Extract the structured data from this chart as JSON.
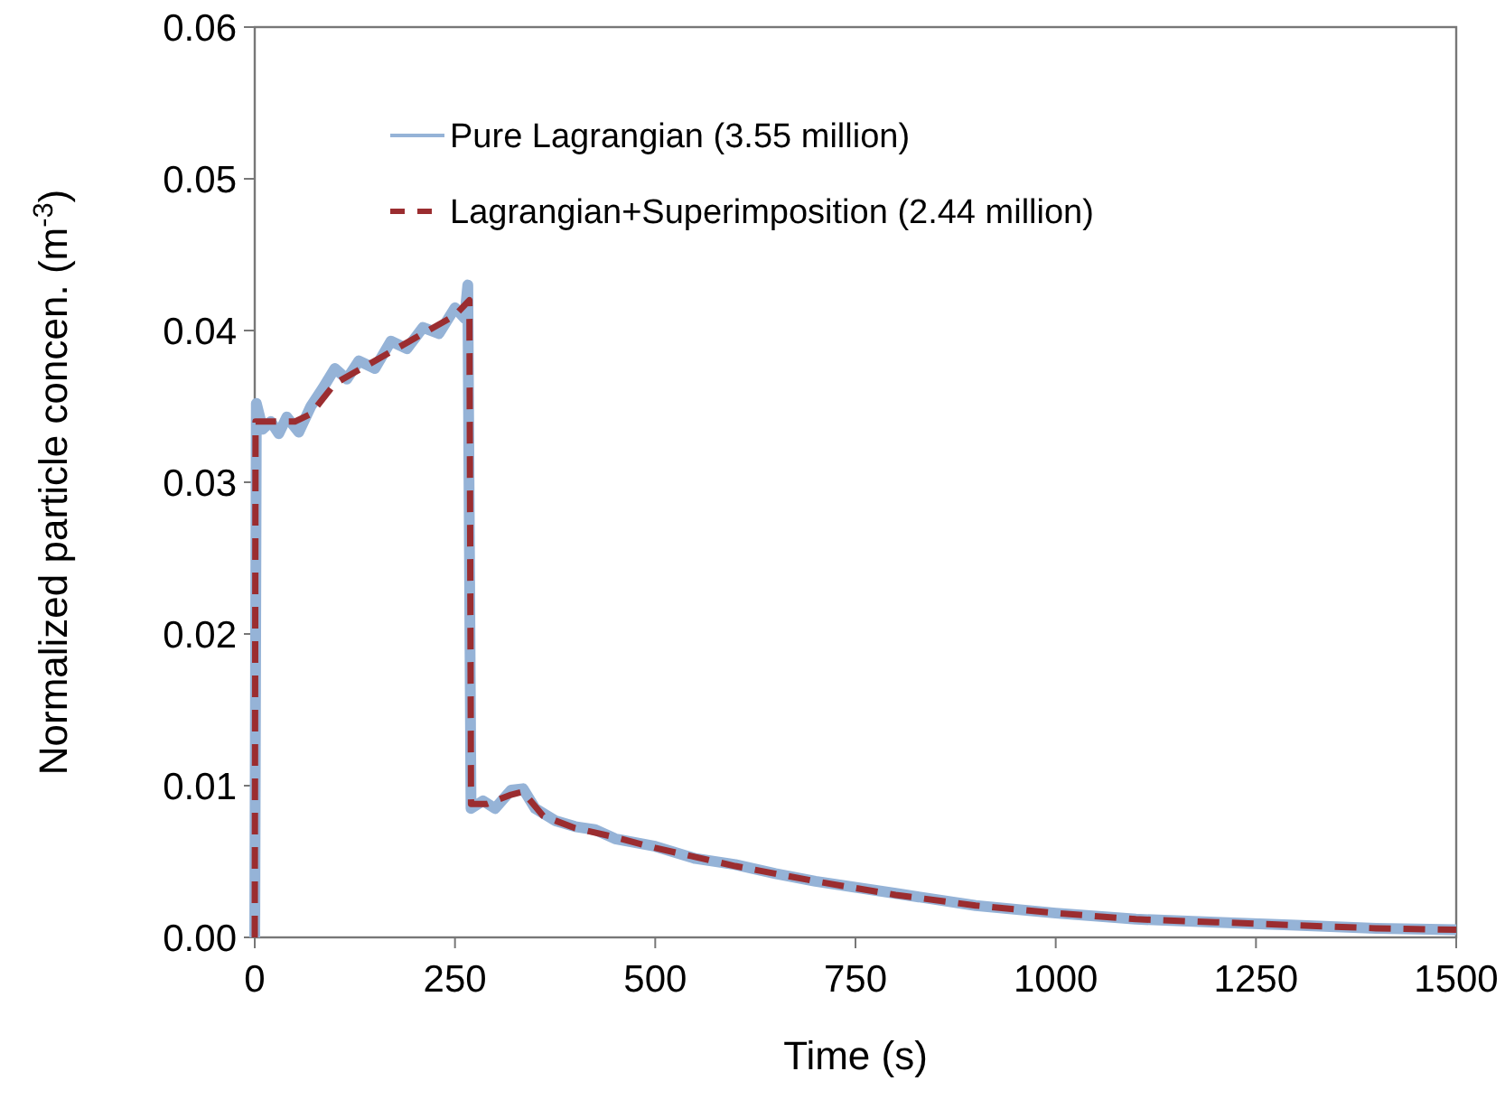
{
  "chart_data": {
    "type": "line",
    "xlabel": "Time (s)",
    "ylabel": "Normalized particle concen. (m$^{-3}$)",
    "xlim": [
      0,
      1500
    ],
    "xticks": [
      0,
      250,
      500,
      750,
      1000,
      1250,
      1500
    ],
    "ylim": [
      0,
      0.06
    ],
    "yticks": [
      {
        "value": 0,
        "label": "0.00"
      },
      {
        "value": 0.01,
        "label": "0.01"
      },
      {
        "value": 0.02,
        "label": "0.02"
      },
      {
        "value": 0.03,
        "label": "0.03"
      },
      {
        "value": 0.04,
        "label": "0.04"
      },
      {
        "value": 0.05,
        "label": "0.05"
      },
      {
        "value": 0.06,
        "label": "0.06"
      }
    ],
    "grid": false,
    "legend": "top left",
    "series": [
      {
        "name": "Pure Lagrangian (3.55 million)",
        "color": "#95b3d7",
        "line_style": "solid",
        "x": [
          0,
          2,
          10,
          20,
          30,
          40,
          55,
          70,
          85,
          100,
          115,
          130,
          150,
          170,
          190,
          210,
          230,
          250,
          262,
          266,
          270,
          285,
          300,
          320,
          335,
          350,
          375,
          400,
          425,
          450,
          500,
          550,
          600,
          650,
          700,
          800,
          900,
          1000,
          1100,
          1200,
          1300,
          1400,
          1500
        ],
        "values": [
          0,
          0.0352,
          0.0335,
          0.034,
          0.0332,
          0.0343,
          0.0333,
          0.035,
          0.0362,
          0.0375,
          0.0368,
          0.038,
          0.0375,
          0.0393,
          0.0388,
          0.0402,
          0.0398,
          0.0415,
          0.0408,
          0.043,
          0.0085,
          0.009,
          0.0085,
          0.0097,
          0.0098,
          0.0085,
          0.0077,
          0.0073,
          0.0071,
          0.0065,
          0.006,
          0.0052,
          0.0048,
          0.0042,
          0.0037,
          0.0029,
          0.0021,
          0.0016,
          0.0012,
          0.001,
          0.0008,
          0.0006,
          0.0005
        ]
      },
      {
        "name": "Lagrangian+Superimposition (2.44 million)",
        "color": "#9b2d30",
        "line_style": "dashed",
        "x": [
          0,
          1,
          20,
          50,
          70,
          100,
          150,
          200,
          250,
          268,
          270,
          290,
          320,
          335,
          360,
          400,
          450,
          500,
          600,
          700,
          800,
          900,
          1000,
          1100,
          1200,
          1300,
          1400,
          1500
        ],
        "values": [
          0,
          0.034,
          0.034,
          0.034,
          0.0345,
          0.0365,
          0.038,
          0.0395,
          0.041,
          0.042,
          0.0088,
          0.0088,
          0.0094,
          0.0096,
          0.008,
          0.0072,
          0.0066,
          0.0059,
          0.0047,
          0.0037,
          0.0028,
          0.0021,
          0.0016,
          0.0012,
          0.001,
          0.0008,
          0.0006,
          0.0005
        ]
      }
    ]
  }
}
